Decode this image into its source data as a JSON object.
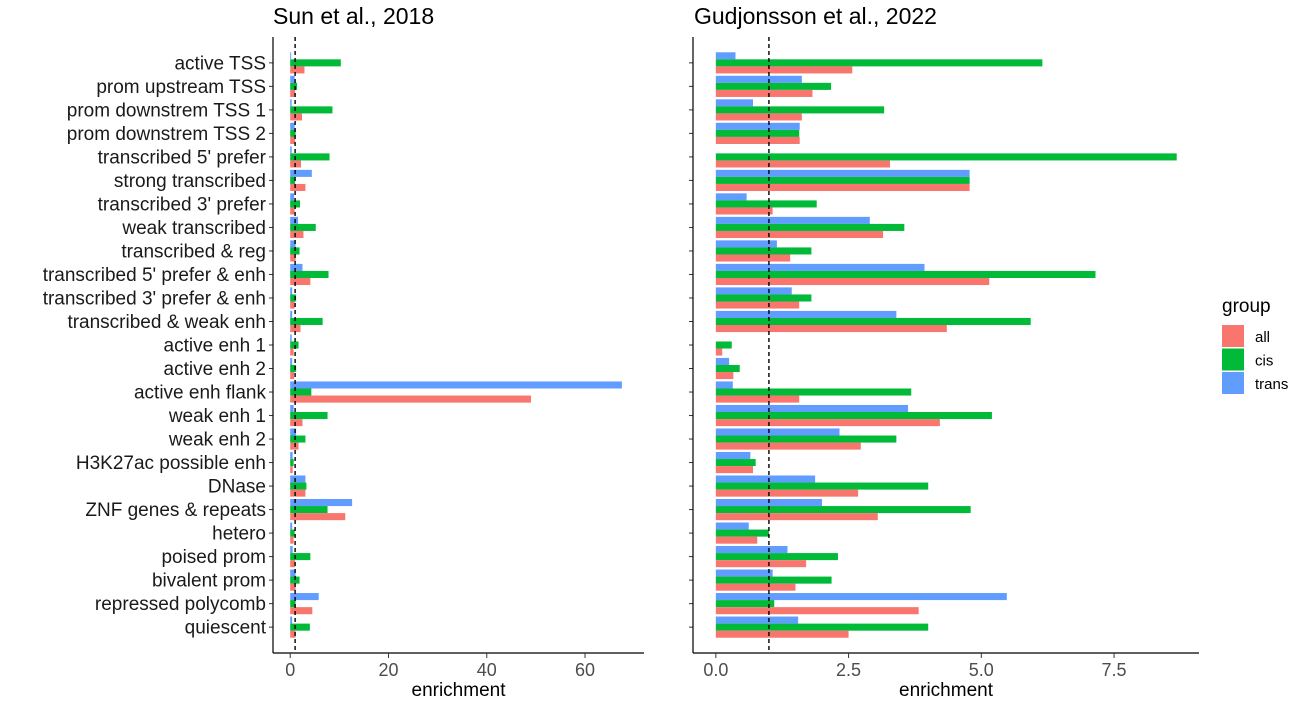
{
  "chart_data": [
    {
      "type": "bar",
      "orientation": "horizontal",
      "title": "Sun et al., 2018",
      "xlabel": "enrichment",
      "ylabel": "",
      "xlim": [
        -3.5,
        72
      ],
      "xticks": [
        0,
        20,
        40,
        60
      ],
      "reference_line": 1,
      "categories": [
        "active TSS",
        "prom upstream TSS",
        "prom downstrem TSS 1",
        "prom downstrem TSS 2",
        "transcribed 5' prefer",
        "strong transcribed",
        "transcribed 3' prefer",
        "weak transcribed",
        "transcribed & reg",
        "transcribed 5' prefer & enh",
        "transcribed 3' prefer & enh",
        "transcribed & weak enh",
        "active enh 1",
        "active enh 2",
        "active enh flank",
        "weak enh 1",
        "weak enh 2",
        "H3K27ac possible enh",
        "DNase",
        "ZNF genes & repeats",
        "hetero",
        "poised prom",
        "bivalent prom",
        "repressed polycomb",
        "quiescent"
      ],
      "series": [
        {
          "name": "trans",
          "values": [
            0.2,
            0.9,
            0.3,
            0.9,
            0.3,
            4.4,
            0.8,
            1.6,
            1.1,
            2.5,
            0.4,
            0.4,
            0.3,
            0.4,
            67.5,
            0.7,
            1.2,
            0.5,
            3.1,
            12.6,
            0.4,
            0.5,
            1.1,
            5.8,
            0.4
          ]
        },
        {
          "name": "cis",
          "values": [
            10.3,
            1.4,
            8.6,
            1.1,
            8.0,
            1.0,
            2.0,
            5.2,
            1.9,
            7.8,
            1.2,
            6.6,
            1.7,
            1.2,
            4.3,
            7.6,
            3.1,
            0.7,
            3.3,
            7.6,
            0.9,
            4.1,
            1.9,
            1.1,
            4.0
          ]
        },
        {
          "name": "all",
          "values": [
            2.9,
            1.0,
            2.4,
            1.0,
            2.2,
            3.1,
            0.9,
            2.7,
            1.1,
            4.1,
            0.9,
            2.1,
            0.7,
            0.8,
            49.0,
            2.5,
            1.7,
            0.5,
            3.1,
            11.2,
            0.7,
            1.0,
            1.1,
            4.5,
            1.1
          ]
        }
      ]
    },
    {
      "type": "bar",
      "orientation": "horizontal",
      "title": "Gudjonsson et al., 2022",
      "xlabel": "enrichment",
      "ylabel": "",
      "xlim": [
        -0.43,
        9.1
      ],
      "xticks": [
        0.0,
        2.5,
        5.0,
        7.5
      ],
      "xtick_labels": [
        "0.0",
        "2.5",
        "5.0",
        "7.5"
      ],
      "reference_line": 1,
      "categories": [
        "active TSS",
        "prom upstream TSS",
        "prom downstrem TSS 1",
        "prom downstrem TSS 2",
        "transcribed 5' prefer",
        "strong transcribed",
        "transcribed 3' prefer",
        "weak transcribed",
        "transcribed & reg",
        "transcribed 5' prefer & enh",
        "transcribed 3' prefer & enh",
        "transcribed & weak enh",
        "active enh 1",
        "active enh 2",
        "active enh flank",
        "weak enh 1",
        "weak enh 2",
        "H3K27ac possible enh",
        "DNase",
        "ZNF genes & repeats",
        "hetero",
        "poised prom",
        "bivalent prom",
        "repressed polycomb",
        "quiescent"
      ],
      "series": [
        {
          "name": "trans",
          "values": [
            0.37,
            1.62,
            0.7,
            1.58,
            0.0,
            4.78,
            0.58,
            2.9,
            1.15,
            3.93,
            1.43,
            3.4,
            0.0,
            0.25,
            0.32,
            3.62,
            2.33,
            0.65,
            1.87,
            2.0,
            0.62,
            1.35,
            1.07,
            5.48,
            1.55
          ]
        },
        {
          "name": "cis",
          "values": [
            6.15,
            2.17,
            3.17,
            1.57,
            8.68,
            4.78,
            1.9,
            3.55,
            1.8,
            7.15,
            1.8,
            5.93,
            0.3,
            0.45,
            3.68,
            5.2,
            3.4,
            0.75,
            4.0,
            4.8,
            1.0,
            2.3,
            2.18,
            1.1,
            4.0
          ]
        },
        {
          "name": "all",
          "values": [
            2.57,
            1.82,
            1.62,
            1.58,
            3.28,
            4.78,
            1.07,
            3.15,
            1.4,
            5.15,
            1.57,
            4.35,
            0.12,
            0.33,
            1.57,
            4.22,
            2.73,
            0.7,
            2.68,
            3.05,
            0.78,
            1.7,
            1.5,
            3.82,
            2.5
          ]
        }
      ]
    }
  ],
  "legend": {
    "title": "group",
    "placement": "right",
    "items": [
      {
        "name": "all",
        "color": "#F8766D"
      },
      {
        "name": "cis",
        "color": "#00BA38"
      },
      {
        "name": "trans",
        "color": "#619CFF"
      }
    ]
  },
  "colors": {
    "all": "#F8766D",
    "cis": "#00BA38",
    "trans": "#619CFF"
  }
}
